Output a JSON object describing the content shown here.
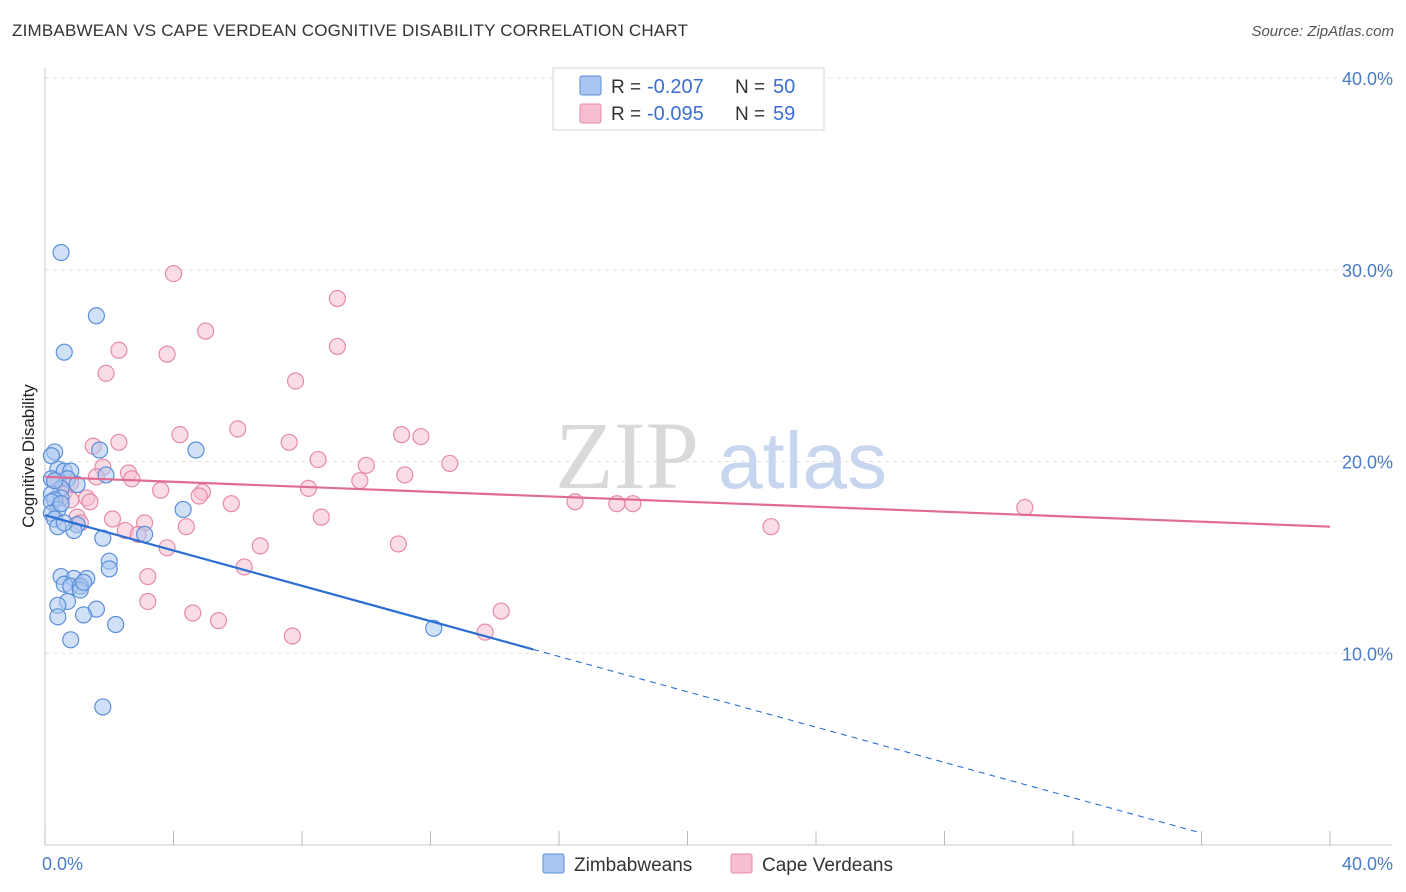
{
  "header": {
    "title": "ZIMBABWEAN VS CAPE VERDEAN COGNITIVE DISABILITY CORRELATION CHART",
    "source": "Source: ZipAtlas.com"
  },
  "watermark": {
    "zip": "ZIP",
    "atlas": "atlas"
  },
  "colors": {
    "zimbabweans_fill": "#a9c6f0",
    "zimbabweans_stroke": "#5b8fd9",
    "zimbabweans_line": "#2a6fd1",
    "cape_verdeans_fill": "#f6bfd0",
    "cape_verdeans_stroke": "#e68aa8",
    "cape_verdeans_line": "#e06c94",
    "tick_text": "#4a7cc7",
    "grid": "#e2e2e2"
  },
  "legend": {
    "rows": [
      {
        "r_label": "R = ",
        "r_value": "-0.207",
        "n_label": "N = ",
        "n_value": "50"
      },
      {
        "r_label": "R = ",
        "r_value": "-0.095",
        "n_label": "N = ",
        "n_value": "59"
      }
    ]
  },
  "bottom_legend": [
    "Zimbabweans",
    "Cape Verdeans"
  ],
  "chart_data": {
    "type": "scatter",
    "title": "ZIMBABWEAN VS CAPE VERDEAN COGNITIVE DISABILITY CORRELATION CHART",
    "xlabel": "",
    "ylabel": "Cognitive Disability",
    "xlim": [
      0,
      40
    ],
    "ylim": [
      0,
      40
    ],
    "x_ticks": [
      "0.0%",
      "40.0%"
    ],
    "y_ticks": [
      "10.0%",
      "20.0%",
      "30.0%",
      "40.0%"
    ],
    "y_tick_values": [
      10,
      20,
      30,
      40
    ],
    "legend_position": "top-center",
    "grid": true,
    "series": [
      {
        "name": "Zimbabweans",
        "r": -0.207,
        "n": 50,
        "trend": {
          "x0": 0,
          "y0": 17.2,
          "x1": 15.2,
          "y1": 10.2,
          "dashed_to_x": 36
        },
        "points": [
          [
            0.5,
            30.9
          ],
          [
            1.6,
            27.6
          ],
          [
            0.6,
            25.7
          ],
          [
            1.7,
            20.6
          ],
          [
            0.3,
            20.5
          ],
          [
            4.7,
            20.6
          ],
          [
            0.2,
            20.3
          ],
          [
            0.4,
            19.6
          ],
          [
            0.6,
            19.5
          ],
          [
            0.8,
            19.5
          ],
          [
            1.9,
            19.3
          ],
          [
            0.7,
            19.1
          ],
          [
            0.2,
            19.1
          ],
          [
            1.0,
            18.8
          ],
          [
            0.5,
            18.6
          ],
          [
            0.2,
            18.3
          ],
          [
            0.5,
            18.1
          ],
          [
            0.3,
            18.0
          ],
          [
            0.2,
            17.9
          ],
          [
            0.4,
            17.5
          ],
          [
            4.3,
            17.5
          ],
          [
            0.2,
            17.3
          ],
          [
            0.3,
            17.0
          ],
          [
            1.0,
            16.7
          ],
          [
            0.4,
            16.6
          ],
          [
            0.9,
            16.4
          ],
          [
            3.1,
            16.2
          ],
          [
            1.8,
            16.0
          ],
          [
            2.0,
            14.8
          ],
          [
            2.0,
            14.4
          ],
          [
            0.5,
            14.0
          ],
          [
            0.9,
            13.9
          ],
          [
            1.3,
            13.9
          ],
          [
            0.6,
            13.6
          ],
          [
            0.8,
            13.5
          ],
          [
            1.1,
            13.5
          ],
          [
            1.1,
            13.3
          ],
          [
            0.7,
            12.7
          ],
          [
            0.4,
            12.5
          ],
          [
            1.6,
            12.3
          ],
          [
            1.2,
            12.0
          ],
          [
            0.4,
            11.9
          ],
          [
            2.2,
            11.5
          ],
          [
            12.1,
            11.3
          ],
          [
            0.8,
            10.7
          ],
          [
            1.8,
            7.2
          ],
          [
            0.3,
            19.0
          ],
          [
            0.5,
            17.8
          ],
          [
            1.2,
            13.7
          ],
          [
            0.6,
            16.8
          ]
        ]
      },
      {
        "name": "Cape Verdeans",
        "r": -0.095,
        "n": 59,
        "trend": {
          "x0": 0,
          "y0": 19.2,
          "x1": 40,
          "y1": 16.6
        },
        "points": [
          [
            4.0,
            29.8
          ],
          [
            9.1,
            28.5
          ],
          [
            5.0,
            26.8
          ],
          [
            2.3,
            25.8
          ],
          [
            3.8,
            25.6
          ],
          [
            9.1,
            26.0
          ],
          [
            1.9,
            24.6
          ],
          [
            7.8,
            24.2
          ],
          [
            6.0,
            21.7
          ],
          [
            4.2,
            21.4
          ],
          [
            11.1,
            21.4
          ],
          [
            11.7,
            21.3
          ],
          [
            2.3,
            21.0
          ],
          [
            7.6,
            21.0
          ],
          [
            1.5,
            20.8
          ],
          [
            8.5,
            20.1
          ],
          [
            10.0,
            19.8
          ],
          [
            12.6,
            19.9
          ],
          [
            1.8,
            19.7
          ],
          [
            2.6,
            19.4
          ],
          [
            11.2,
            19.3
          ],
          [
            2.7,
            19.1
          ],
          [
            9.8,
            19.0
          ],
          [
            0.8,
            18.9
          ],
          [
            0.6,
            18.4
          ],
          [
            8.2,
            18.6
          ],
          [
            3.6,
            18.5
          ],
          [
            4.9,
            18.4
          ],
          [
            4.8,
            18.2
          ],
          [
            1.3,
            18.1
          ],
          [
            0.8,
            18.0
          ],
          [
            1.4,
            17.9
          ],
          [
            5.8,
            17.8
          ],
          [
            16.5,
            17.9
          ],
          [
            17.8,
            17.8
          ],
          [
            18.3,
            17.8
          ],
          [
            30.5,
            17.6
          ],
          [
            1.0,
            17.1
          ],
          [
            2.1,
            17.0
          ],
          [
            8.6,
            17.1
          ],
          [
            1.1,
            16.8
          ],
          [
            3.1,
            16.8
          ],
          [
            4.4,
            16.6
          ],
          [
            2.5,
            16.4
          ],
          [
            22.6,
            16.6
          ],
          [
            6.7,
            15.6
          ],
          [
            11.0,
            15.7
          ],
          [
            3.8,
            15.5
          ],
          [
            6.2,
            14.5
          ],
          [
            3.2,
            14.0
          ],
          [
            3.2,
            12.7
          ],
          [
            14.2,
            12.2
          ],
          [
            4.6,
            12.1
          ],
          [
            5.4,
            11.7
          ],
          [
            7.7,
            10.9
          ],
          [
            13.7,
            11.1
          ],
          [
            0.4,
            19.0
          ],
          [
            1.6,
            19.2
          ],
          [
            2.9,
            16.2
          ]
        ]
      }
    ]
  }
}
